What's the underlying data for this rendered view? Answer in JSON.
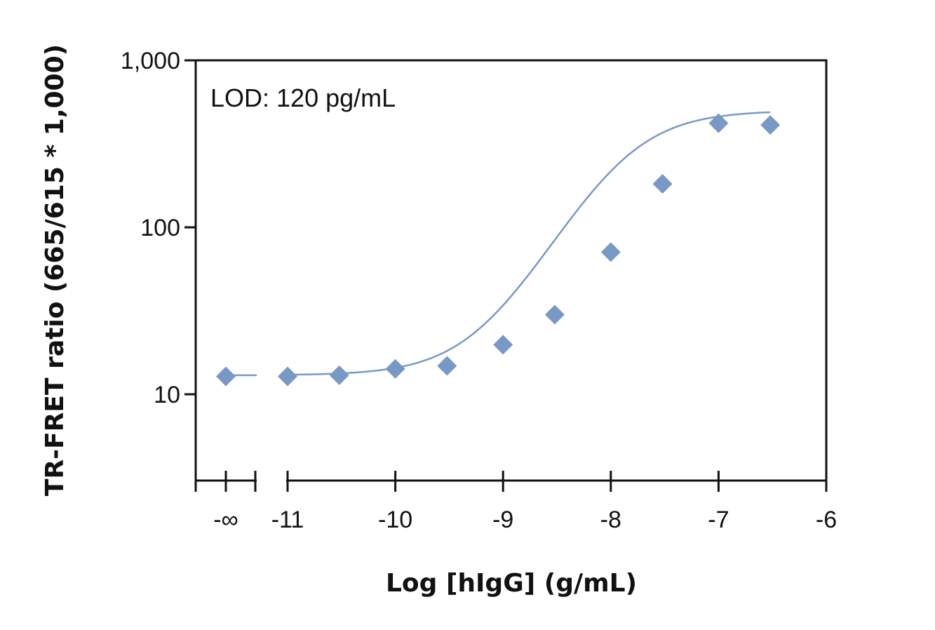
{
  "chart_data": {
    "type": "scatter",
    "title": "",
    "xlabel": "Log [hIgG] (g/mL)",
    "ylabel": "TR-FRET ratio (665/615 * 1,000)",
    "yscale": "log",
    "ylim": [
      3.2,
      1000
    ],
    "xlim": [
      -11.8,
      -6
    ],
    "x_ticks": [
      {
        "value": -11,
        "label": "-11"
      },
      {
        "value": -10,
        "label": "-10"
      },
      {
        "value": -9,
        "label": "-9"
      },
      {
        "value": -8,
        "label": "-8"
      },
      {
        "value": -7,
        "label": "-7"
      },
      {
        "value": -6,
        "label": "-6"
      }
    ],
    "x_break_label": "-∞",
    "y_ticks": [
      {
        "value": 10,
        "label": "10"
      },
      {
        "value": 100,
        "label": "100"
      },
      {
        "value": 1000,
        "label": "1,000"
      }
    ],
    "annotation": "LOD: 120 pg/mL",
    "colors": {
      "series": "#7899c6",
      "axis": "#111111"
    },
    "grid": false,
    "legend": "none",
    "blank_point": {
      "x": "-∞",
      "y": 12.8
    },
    "series": [
      {
        "values": [
          {
            "x": -11.0,
            "y": 12.8
          },
          {
            "x": -10.52,
            "y": 13.0
          },
          {
            "x": -10.0,
            "y": 14.2
          },
          {
            "x": -9.52,
            "y": 14.8
          },
          {
            "x": -9.0,
            "y": 19.8
          },
          {
            "x": -8.52,
            "y": 30.0
          },
          {
            "x": -8.0,
            "y": 71.0
          },
          {
            "x": -7.52,
            "y": 182.0
          },
          {
            "x": -7.0,
            "y": 420.0
          },
          {
            "x": -6.52,
            "y": 410.0
          }
        ]
      }
    ],
    "fit_curve": {
      "model": "4PL",
      "bottom": 13.0,
      "top": 500.0,
      "log_ec50": -7.88,
      "hill": 1.2,
      "x_range": [
        -11.0,
        -6.52
      ]
    }
  }
}
